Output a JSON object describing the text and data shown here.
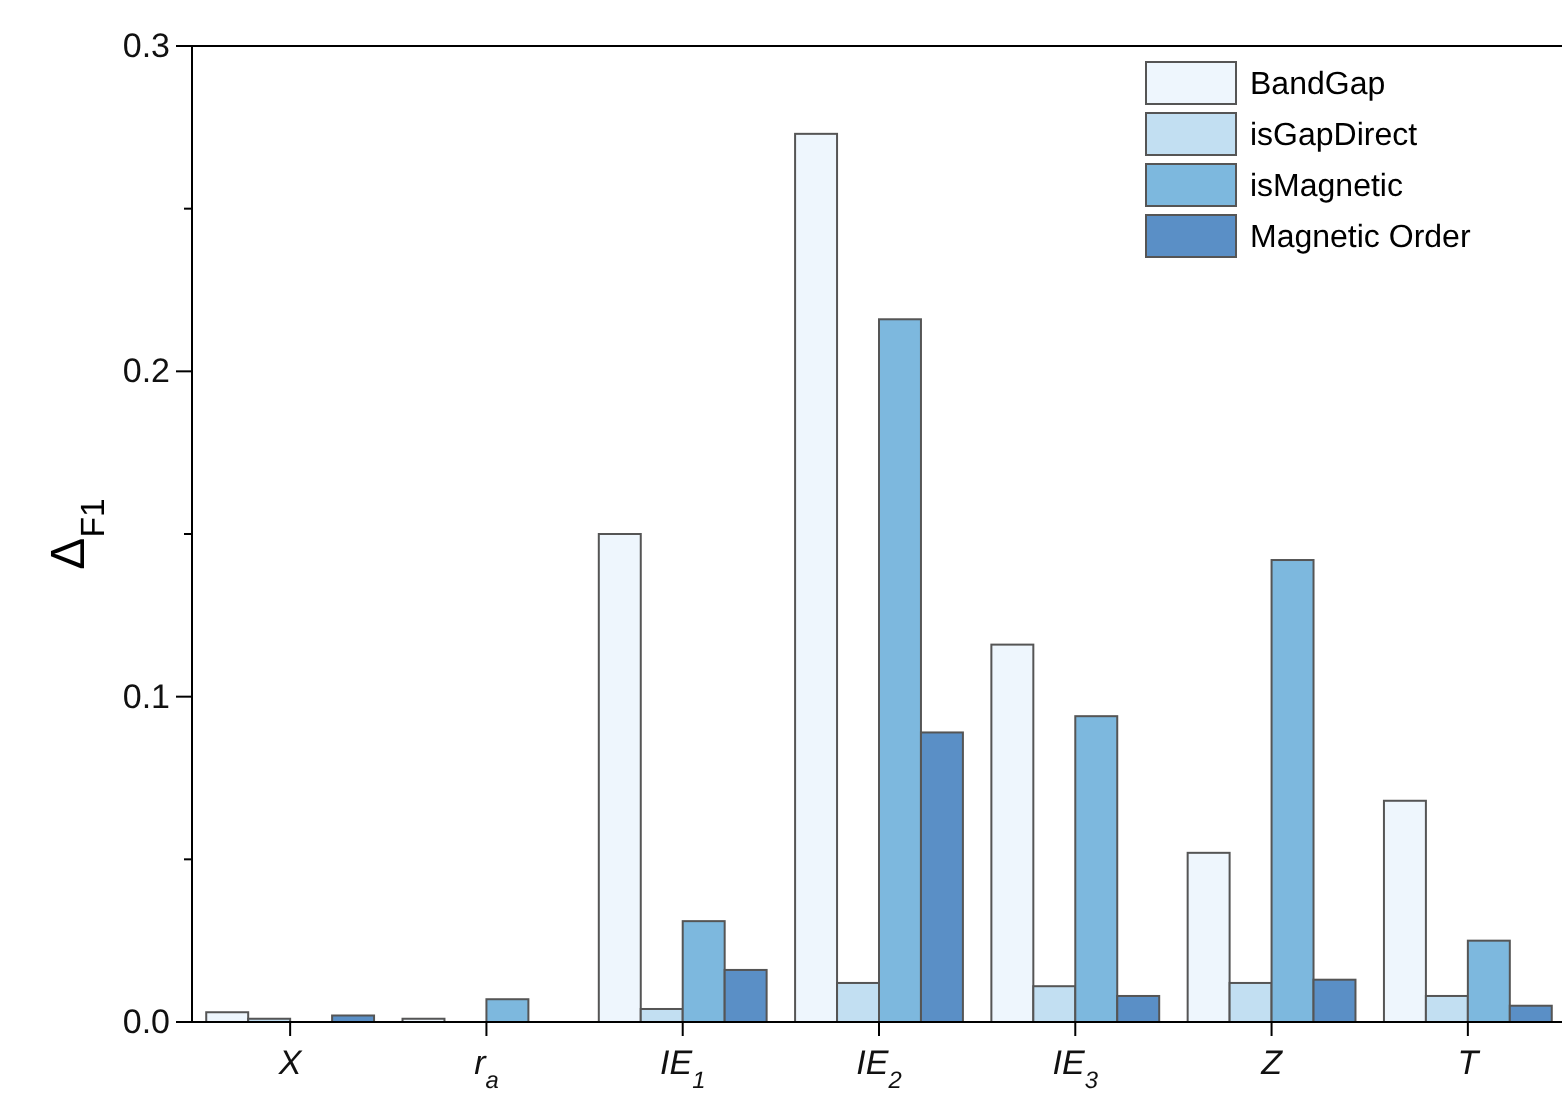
{
  "chart_data": {
    "type": "bar",
    "ylabel": "Δ$_{F1}$",
    "categories": [
      "X",
      "r$_{a}$",
      "IE$_{1}$",
      "IE$_{2}$",
      "IE$_{3}$",
      "Z",
      "T"
    ],
    "series": [
      {
        "name": "BandGap",
        "color": "#eef6fd",
        "values": [
          0.003,
          0.001,
          0.15,
          0.273,
          0.116,
          0.052,
          0.068
        ]
      },
      {
        "name": "isGapDirect",
        "color": "#c2dff2",
        "values": [
          0.001,
          0,
          0.004,
          0.012,
          0.011,
          0.012,
          0.008
        ]
      },
      {
        "name": "isMagnetic",
        "color": "#7db8de",
        "values": [
          0,
          0.007,
          0.031,
          0.216,
          0.094,
          0.142,
          0.025
        ]
      },
      {
        "name": "Magnetic Order",
        "color": "#5a8fc6",
        "values": [
          0.002,
          0,
          0.016,
          0.089,
          0.008,
          0.013,
          0.005
        ]
      }
    ],
    "ylim": [
      0,
      0.3
    ],
    "yticks": [
      {
        "value": 0,
        "label": "0.0"
      },
      {
        "value": 0.05,
        "label": null
      },
      {
        "value": 0.1,
        "label": "0.1"
      },
      {
        "value": 0.15,
        "label": null
      },
      {
        "value": 0.2,
        "label": "0.2"
      },
      {
        "value": 0.25,
        "label": null
      },
      {
        "value": 0.3,
        "label": "0.3"
      }
    ],
    "legend": "top right",
    "grid": false
  }
}
